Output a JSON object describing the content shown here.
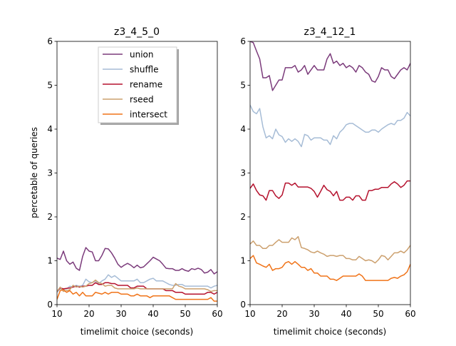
{
  "figure": {
    "ylabel": "percetable of queries"
  },
  "chart_data": [
    {
      "type": "line",
      "title": "z3_4_5_0",
      "xlabel": "timelimit choice (seconds)",
      "ylabel": "percetable of queries",
      "xlim": [
        10,
        60
      ],
      "ylim": [
        0,
        6
      ],
      "xticks": [
        10,
        20,
        30,
        40,
        50,
        60
      ],
      "yticks": [
        0,
        1,
        2,
        3,
        4,
        5,
        6
      ],
      "legend": {
        "placement": "upper-center",
        "shadow": true
      },
      "x": [
        10,
        11,
        12,
        13,
        14,
        15,
        16,
        17,
        18,
        19,
        20,
        21,
        22,
        23,
        24,
        25,
        26,
        27,
        28,
        29,
        30,
        31,
        32,
        33,
        34,
        35,
        36,
        37,
        38,
        39,
        40,
        41,
        42,
        43,
        44,
        45,
        46,
        47,
        48,
        49,
        50,
        51,
        52,
        53,
        54,
        55,
        56,
        57,
        58,
        59,
        60
      ],
      "series": [
        {
          "name": "union",
          "color": "#7b3b7b",
          "values": [
            1.06,
            1.03,
            1.22,
            1.0,
            0.92,
            0.97,
            0.83,
            0.78,
            1.1,
            1.3,
            1.22,
            1.2,
            1.0,
            1.0,
            1.12,
            1.28,
            1.27,
            1.18,
            1.06,
            0.92,
            0.85,
            0.9,
            0.94,
            0.9,
            0.84,
            0.9,
            0.84,
            0.86,
            0.93,
            1.0,
            1.08,
            1.04,
            1.0,
            0.92,
            0.83,
            0.82,
            0.82,
            0.78,
            0.78,
            0.82,
            0.78,
            0.76,
            0.82,
            0.8,
            0.83,
            0.8,
            0.72,
            0.74,
            0.8,
            0.7,
            0.75
          ]
        },
        {
          "name": "shuffle",
          "color": "#a6bcd6",
          "values": [
            0.28,
            0.36,
            0.34,
            0.36,
            0.42,
            0.4,
            0.44,
            0.42,
            0.44,
            0.58,
            0.52,
            0.5,
            0.54,
            0.48,
            0.54,
            0.58,
            0.68,
            0.62,
            0.66,
            0.6,
            0.54,
            0.54,
            0.54,
            0.54,
            0.54,
            0.58,
            0.5,
            0.5,
            0.54,
            0.58,
            0.6,
            0.54,
            0.54,
            0.54,
            0.5,
            0.46,
            0.44,
            0.44,
            0.46,
            0.46,
            0.42,
            0.42,
            0.42,
            0.42,
            0.42,
            0.42,
            0.42,
            0.42,
            0.38,
            0.42,
            0.44
          ]
        },
        {
          "name": "rename",
          "color": "#b5122e",
          "values": [
            0.3,
            0.38,
            0.36,
            0.37,
            0.38,
            0.4,
            0.42,
            0.4,
            0.42,
            0.42,
            0.44,
            0.44,
            0.5,
            0.46,
            0.46,
            0.5,
            0.5,
            0.48,
            0.48,
            0.44,
            0.44,
            0.44,
            0.44,
            0.38,
            0.38,
            0.42,
            0.42,
            0.42,
            0.36,
            0.36,
            0.36,
            0.36,
            0.36,
            0.36,
            0.32,
            0.32,
            0.32,
            0.28,
            0.28,
            0.28,
            0.24,
            0.24,
            0.24,
            0.24,
            0.24,
            0.24,
            0.24,
            0.28,
            0.28,
            0.24,
            0.28
          ]
        },
        {
          "name": "rseed",
          "color": "#cca06e",
          "values": [
            0.3,
            0.4,
            0.3,
            0.32,
            0.34,
            0.44,
            0.4,
            0.42,
            0.4,
            0.42,
            0.48,
            0.5,
            0.56,
            0.5,
            0.48,
            0.42,
            0.44,
            0.44,
            0.38,
            0.36,
            0.36,
            0.36,
            0.36,
            0.36,
            0.36,
            0.38,
            0.36,
            0.36,
            0.36,
            0.36,
            0.36,
            0.36,
            0.36,
            0.36,
            0.36,
            0.36,
            0.36,
            0.48,
            0.42,
            0.4,
            0.36,
            0.36,
            0.36,
            0.36,
            0.36,
            0.36,
            0.36,
            0.34,
            0.3,
            0.32,
            0.32
          ]
        },
        {
          "name": "intersect",
          "color": "#f07318",
          "values": [
            0.12,
            0.32,
            0.34,
            0.28,
            0.32,
            0.24,
            0.28,
            0.2,
            0.28,
            0.2,
            0.2,
            0.2,
            0.28,
            0.26,
            0.24,
            0.28,
            0.24,
            0.28,
            0.28,
            0.28,
            0.24,
            0.24,
            0.24,
            0.2,
            0.2,
            0.24,
            0.2,
            0.2,
            0.2,
            0.16,
            0.2,
            0.2,
            0.2,
            0.2,
            0.2,
            0.2,
            0.16,
            0.12,
            0.12,
            0.12,
            0.12,
            0.12,
            0.12,
            0.12,
            0.12,
            0.12,
            0.12,
            0.12,
            0.16,
            0.08,
            0.08
          ]
        }
      ]
    },
    {
      "type": "line",
      "title": "z3_4_12_1",
      "xlabel": "timelimit choice (seconds)",
      "ylabel": "",
      "xlim": [
        10,
        60
      ],
      "ylim": [
        0,
        6
      ],
      "xticks": [
        10,
        20,
        30,
        40,
        50,
        60
      ],
      "yticks": [
        0,
        1,
        2,
        3,
        4,
        5,
        6
      ],
      "x": [
        10,
        11,
        12,
        13,
        14,
        15,
        16,
        17,
        18,
        19,
        20,
        21,
        22,
        23,
        24,
        25,
        26,
        27,
        28,
        29,
        30,
        31,
        32,
        33,
        34,
        35,
        36,
        37,
        38,
        39,
        40,
        41,
        42,
        43,
        44,
        45,
        46,
        47,
        48,
        49,
        50,
        51,
        52,
        53,
        54,
        55,
        56,
        57,
        58,
        59,
        60
      ],
      "series": [
        {
          "name": "union",
          "color": "#7b3b7b",
          "values": [
            6.0,
            5.97,
            5.78,
            5.6,
            5.17,
            5.17,
            5.22,
            4.88,
            5.0,
            5.12,
            5.12,
            5.4,
            5.4,
            5.4,
            5.45,
            5.3,
            5.35,
            5.45,
            5.25,
            5.35,
            5.45,
            5.35,
            5.35,
            5.35,
            5.6,
            5.72,
            5.5,
            5.55,
            5.45,
            5.5,
            5.4,
            5.45,
            5.4,
            5.3,
            5.45,
            5.4,
            5.3,
            5.25,
            5.1,
            5.07,
            5.2,
            5.4,
            5.35,
            5.35,
            5.2,
            5.15,
            5.25,
            5.35,
            5.4,
            5.35,
            5.5
          ]
        },
        {
          "name": "shuffle",
          "color": "#a6bcd6",
          "values": [
            4.55,
            4.4,
            4.35,
            4.47,
            4.05,
            3.8,
            3.85,
            3.78,
            4.0,
            3.87,
            3.83,
            3.7,
            3.78,
            3.72,
            3.78,
            3.72,
            3.6,
            3.88,
            3.85,
            3.75,
            3.8,
            3.8,
            3.8,
            3.75,
            3.75,
            3.65,
            3.85,
            3.78,
            3.93,
            4.0,
            4.1,
            4.13,
            4.13,
            4.08,
            4.03,
            3.98,
            3.93,
            3.93,
            3.98,
            3.98,
            3.93,
            4.0,
            4.05,
            4.1,
            4.13,
            4.1,
            4.2,
            4.2,
            4.25,
            4.38,
            4.3
          ]
        },
        {
          "name": "rename",
          "color": "#b5122e",
          "values": [
            2.65,
            2.75,
            2.6,
            2.5,
            2.48,
            2.38,
            2.6,
            2.6,
            2.48,
            2.42,
            2.5,
            2.77,
            2.77,
            2.72,
            2.77,
            2.68,
            2.68,
            2.68,
            2.68,
            2.65,
            2.58,
            2.45,
            2.58,
            2.72,
            2.62,
            2.58,
            2.48,
            2.58,
            2.38,
            2.38,
            2.45,
            2.45,
            2.38,
            2.48,
            2.48,
            2.38,
            2.38,
            2.6,
            2.6,
            2.63,
            2.63,
            2.67,
            2.67,
            2.67,
            2.75,
            2.8,
            2.75,
            2.67,
            2.72,
            2.82,
            2.82
          ]
        },
        {
          "name": "rseed",
          "color": "#cca06e",
          "values": [
            1.38,
            1.45,
            1.35,
            1.35,
            1.28,
            1.28,
            1.35,
            1.35,
            1.42,
            1.48,
            1.42,
            1.42,
            1.42,
            1.52,
            1.48,
            1.55,
            1.3,
            1.28,
            1.25,
            1.2,
            1.18,
            1.22,
            1.18,
            1.15,
            1.1,
            1.12,
            1.12,
            1.1,
            1.12,
            1.12,
            1.05,
            1.05,
            1.02,
            1.02,
            1.1,
            1.05,
            1.0,
            1.02,
            1.0,
            0.95,
            1.02,
            1.12,
            1.1,
            1.02,
            1.1,
            1.18,
            1.18,
            1.22,
            1.18,
            1.25,
            1.35
          ]
        },
        {
          "name": "intersect",
          "color": "#f07318",
          "values": [
            1.05,
            1.12,
            0.95,
            0.92,
            0.88,
            0.85,
            0.92,
            0.78,
            0.82,
            0.82,
            0.85,
            0.95,
            0.98,
            0.92,
            0.98,
            0.92,
            0.85,
            0.85,
            0.78,
            0.82,
            0.72,
            0.72,
            0.65,
            0.65,
            0.65,
            0.58,
            0.58,
            0.55,
            0.6,
            0.65,
            0.65,
            0.65,
            0.65,
            0.65,
            0.7,
            0.65,
            0.55,
            0.55,
            0.55,
            0.55,
            0.55,
            0.55,
            0.55,
            0.55,
            0.6,
            0.62,
            0.6,
            0.65,
            0.68,
            0.75,
            0.92
          ]
        }
      ]
    }
  ]
}
